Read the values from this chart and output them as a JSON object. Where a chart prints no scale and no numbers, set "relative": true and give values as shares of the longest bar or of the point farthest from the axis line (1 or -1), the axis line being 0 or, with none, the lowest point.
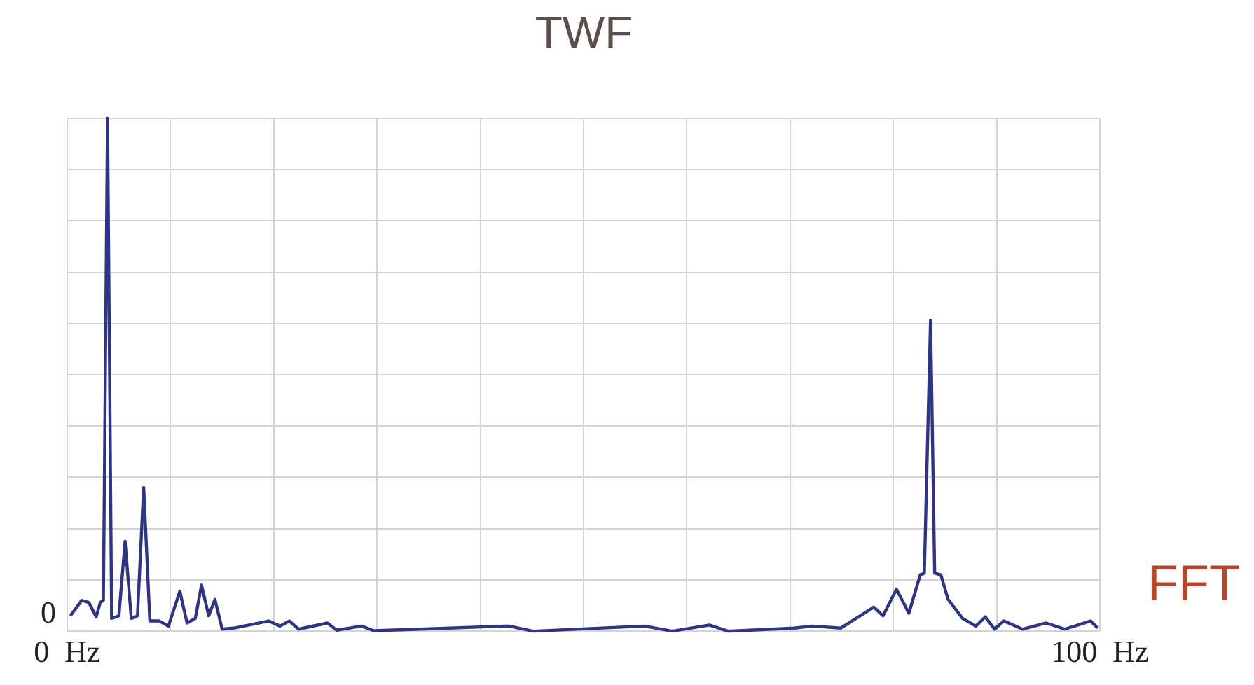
{
  "chart_data": {
    "type": "line",
    "title": "TWF",
    "annotations": [
      "FFT",
      "0"
    ],
    "relative": true,
    "grid": true,
    "marker": "none",
    "line_style": "solid",
    "xlim": [
      0,
      100
    ],
    "xticks": [
      {
        "value": 0,
        "label": "0  Hz"
      },
      {
        "value": 10,
        "label": null
      },
      {
        "value": 20,
        "label": null
      },
      {
        "value": 30,
        "label": null
      },
      {
        "value": 40,
        "label": null
      },
      {
        "value": 50,
        "label": null
      },
      {
        "value": 60,
        "label": null
      },
      {
        "value": 70,
        "label": null
      },
      {
        "value": 80,
        "label": null
      },
      {
        "value": 90,
        "label": null
      },
      {
        "value": 100,
        "label": "100  Hz"
      }
    ],
    "series": [
      {
        "color": "#2e3582",
        "x": [
          0.3,
          1.4,
          2.1,
          2.8,
          3.2,
          3.5,
          3.9,
          4.3,
          5.0,
          5.6,
          6.2,
          6.8,
          7.4,
          8.0,
          8.9,
          9.8,
          10.9,
          11.6,
          12.4,
          13.0,
          13.7,
          14.3,
          15.0,
          16.1,
          19.5,
          20.6,
          21.5,
          22.4,
          25.2,
          26.1,
          28.5,
          29.7,
          34.2,
          42.3,
          42.8,
          45.1,
          55.9,
          58.6,
          62.2,
          64.0,
          70.4,
          72.2,
          74.9,
          78.1,
          79.0,
          80.3,
          81.5,
          82.6,
          83.0,
          83.6,
          84.0,
          84.6,
          85.3,
          86.7,
          88.0,
          88.9,
          89.8,
          90.7,
          92.5,
          94.8,
          96.6,
          99.1,
          99.8
        ],
        "values": [
          0.03,
          0.06,
          0.056,
          0.028,
          0.056,
          0.06,
          1.0,
          0.025,
          0.03,
          0.175,
          0.025,
          0.03,
          0.28,
          0.02,
          0.02,
          0.01,
          0.078,
          0.016,
          0.025,
          0.09,
          0.03,
          0.062,
          0.004,
          0.006,
          0.02,
          0.01,
          0.02,
          0.004,
          0.016,
          0.002,
          0.01,
          0.001,
          0.004,
          0.01,
          0.01,
          0,
          0.01,
          0,
          0.012,
          0,
          0.006,
          0.01,
          0.006,
          0.047,
          0.03,
          0.082,
          0.035,
          0.11,
          0.113,
          0.606,
          0.113,
          0.11,
          0.062,
          0.025,
          0.01,
          0.028,
          0.004,
          0.02,
          0.004,
          0.016,
          0.004,
          0.02,
          0.006
        ]
      }
    ]
  }
}
